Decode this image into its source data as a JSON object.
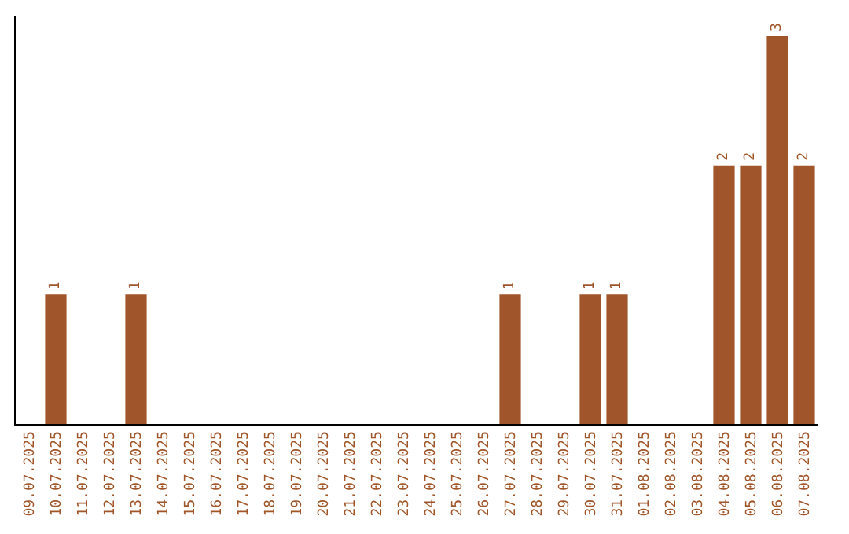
{
  "chart_data": {
    "type": "bar",
    "categories": [
      "09.07.2025",
      "10.07.2025",
      "11.07.2025",
      "12.07.2025",
      "13.07.2025",
      "14.07.2025",
      "15.07.2025",
      "16.07.2025",
      "17.07.2025",
      "18.07.2025",
      "19.07.2025",
      "20.07.2025",
      "21.07.2025",
      "22.07.2025",
      "23.07.2025",
      "24.07.2025",
      "25.07.2025",
      "26.07.2025",
      "27.07.2025",
      "28.07.2025",
      "29.07.2025",
      "30.07.2025",
      "31.07.2025",
      "01.08.2025",
      "02.08.2025",
      "03.08.2025",
      "04.08.2025",
      "05.08.2025",
      "06.08.2025",
      "07.08.2025"
    ],
    "values": [
      0,
      1,
      0,
      0,
      1,
      0,
      0,
      0,
      0,
      0,
      0,
      0,
      0,
      0,
      0,
      0,
      0,
      0,
      1,
      0,
      0,
      1,
      1,
      0,
      0,
      0,
      2,
      2,
      3,
      2
    ],
    "value_labels": [
      null,
      "1",
      null,
      null,
      "1",
      null,
      null,
      null,
      null,
      null,
      null,
      null,
      null,
      null,
      null,
      null,
      null,
      null,
      "1",
      null,
      null,
      "1",
      "1",
      null,
      null,
      null,
      "2",
      "2",
      "3",
      "2"
    ],
    "color": "#a0562a",
    "tick_labels": "x"
  }
}
